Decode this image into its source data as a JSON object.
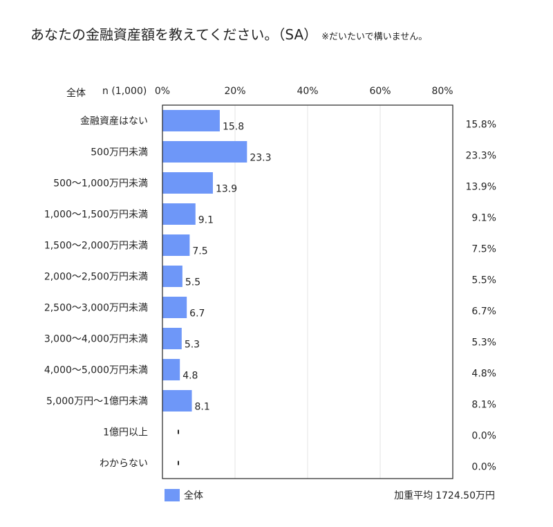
{
  "title": "あなたの金融資産額を教えてください。（SA）",
  "title_note": "※だいたいで構いません。",
  "header": {
    "group": "全体",
    "n": "n (1,000)"
  },
  "legend": {
    "label": "全体",
    "color": "#6e97f8"
  },
  "average": {
    "label": "加重平均",
    "value": "1724.50万円"
  },
  "chart_data": {
    "type": "bar",
    "orientation": "horizontal",
    "categories": [
      "金融資産はない",
      "500万円未満",
      "500〜1,000万円未満",
      "1,000〜1,500万円未満",
      "1,500〜2,000万円未満",
      "2,000〜2,500万円未満",
      "2,500〜3,000万円未満",
      "3,000〜4,000万円未満",
      "4,000〜5,000万円未満",
      "5,000万円〜1億円未満",
      "1億円以上",
      "わからない"
    ],
    "series": [
      {
        "name": "全体",
        "values": [
          15.8,
          23.3,
          13.9,
          9.1,
          7.5,
          5.5,
          6.7,
          5.3,
          4.8,
          8.1,
          0.0,
          0.0
        ]
      }
    ],
    "bar_labels": [
      "15.8",
      "23.3",
      "13.9",
      "9.1",
      "7.5",
      "5.5",
      "6.7",
      "5.3",
      "4.8",
      "8.1",
      "",
      ""
    ],
    "right_labels": [
      "15.8%",
      "23.3%",
      "13.9%",
      "9.1%",
      "7.5%",
      "5.5%",
      "6.7%",
      "5.3%",
      "4.8%",
      "8.1%",
      "0.0%",
      "0.0%"
    ],
    "xlim": [
      0,
      80
    ],
    "xticks": [
      "0%",
      "20%",
      "40%",
      "60%",
      "80%"
    ],
    "grid": true,
    "legend_position": "bottom-left"
  }
}
